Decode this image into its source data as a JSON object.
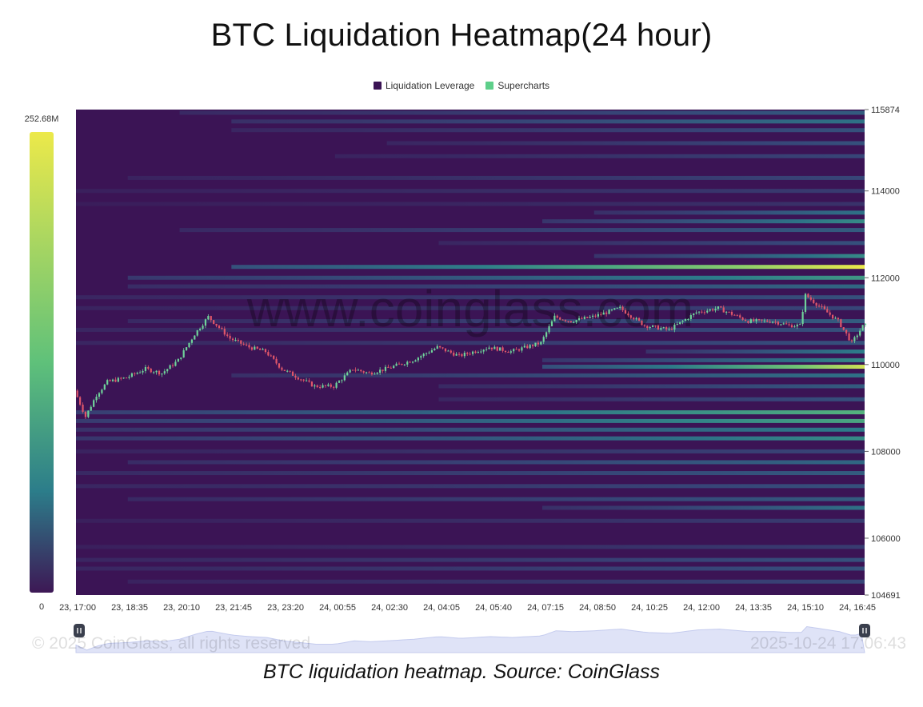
{
  "chart_data": {
    "type": "heatmap",
    "title": "BTC Liquidation Heatmap(24 hour)",
    "legend": [
      {
        "name": "Liquidation Leverage",
        "color": "#3b1455"
      },
      {
        "name": "Supercharts",
        "color": "#5ecf8a"
      }
    ],
    "legend_placement": "top-center",
    "colorbar": {
      "max_label": "252.68M",
      "min_label": "0",
      "max": 252.68,
      "min": 0,
      "unit": "M"
    },
    "y_axis": {
      "position": "right",
      "range": [
        104691,
        115874
      ],
      "tick_values": [
        104691,
        106000,
        108000,
        110000,
        112000,
        114000,
        115874
      ],
      "tick_labels": [
        "104691",
        "106000",
        "108000",
        "110000",
        "112000",
        "114000",
        "115874"
      ]
    },
    "x_axis": {
      "tick_labels": [
        "23, 17:00",
        "23, 18:35",
        "23, 20:10",
        "23, 21:45",
        "23, 23:20",
        "24, 00:55",
        "24, 02:30",
        "24, 04:05",
        "24, 05:40",
        "24, 07:15",
        "24, 08:50",
        "24, 10:25",
        "24, 12:00",
        "24, 13:35",
        "24, 15:10",
        "24, 16:45"
      ],
      "start": "2025-10-23 17:00",
      "end": "2025-10-24 17:06"
    },
    "liquidation_bands": [
      {
        "price": 115800,
        "start": "23, 20:10",
        "max_intensity": 0.35
      },
      {
        "price": 115600,
        "start": "23, 21:45",
        "max_intensity": 0.45
      },
      {
        "price": 115400,
        "start": "23, 21:45",
        "max_intensity": 0.3
      },
      {
        "price": 115100,
        "start": "24, 02:30",
        "max_intensity": 0.3
      },
      {
        "price": 114800,
        "start": "24, 00:55",
        "max_intensity": 0.25
      },
      {
        "price": 114300,
        "start": "23, 18:35",
        "max_intensity": 0.25
      },
      {
        "price": 114000,
        "start": "23, 17:00",
        "max_intensity": 0.2
      },
      {
        "price": 113700,
        "start": "23, 17:00",
        "max_intensity": 0.15
      },
      {
        "price": 113500,
        "start": "24, 08:50",
        "max_intensity": 0.45
      },
      {
        "price": 113300,
        "start": "24, 07:15",
        "max_intensity": 0.55
      },
      {
        "price": 113100,
        "start": "23, 20:10",
        "max_intensity": 0.35
      },
      {
        "price": 112800,
        "start": "24, 04:05",
        "max_intensity": 0.3
      },
      {
        "price": 112500,
        "start": "24, 08:50",
        "max_intensity": 0.55
      },
      {
        "price": 112250,
        "start": "23, 21:45",
        "max_intensity": 1.0
      },
      {
        "price": 112000,
        "start": "23, 18:35",
        "max_intensity": 0.6
      },
      {
        "price": 111800,
        "start": "23, 18:35",
        "max_intensity": 0.4
      },
      {
        "price": 111550,
        "start": "23, 17:00",
        "max_intensity": 0.3
      },
      {
        "price": 111300,
        "start": "23, 17:00",
        "max_intensity": 0.25
      },
      {
        "price": 111000,
        "start": "23, 18:35",
        "max_intensity": 0.35
      },
      {
        "price": 110800,
        "start": "23, 17:00",
        "max_intensity": 0.3
      },
      {
        "price": 110500,
        "start": "23, 17:00",
        "max_intensity": 0.3
      },
      {
        "price": 110300,
        "start": "24, 10:25",
        "max_intensity": 0.5
      },
      {
        "price": 110100,
        "start": "24, 07:15",
        "max_intensity": 0.55
      },
      {
        "price": 109950,
        "start": "24, 07:15",
        "max_intensity": 0.95
      },
      {
        "price": 109750,
        "start": "23, 21:45",
        "max_intensity": 0.45
      },
      {
        "price": 109500,
        "start": "24, 04:05",
        "max_intensity": 0.35
      },
      {
        "price": 109200,
        "start": "24, 04:05",
        "max_intensity": 0.3
      },
      {
        "price": 108900,
        "start": "23, 17:00",
        "max_intensity": 0.7
      },
      {
        "price": 108700,
        "start": "23, 17:00",
        "max_intensity": 0.65
      },
      {
        "price": 108500,
        "start": "23, 17:00",
        "max_intensity": 0.5
      },
      {
        "price": 108300,
        "start": "23, 17:00",
        "max_intensity": 0.55
      },
      {
        "price": 108000,
        "start": "23, 17:00",
        "max_intensity": 0.25
      },
      {
        "price": 107750,
        "start": "23, 18:35",
        "max_intensity": 0.4
      },
      {
        "price": 107500,
        "start": "23, 17:00",
        "max_intensity": 0.35
      },
      {
        "price": 107200,
        "start": "23, 17:00",
        "max_intensity": 0.3
      },
      {
        "price": 106900,
        "start": "23, 18:35",
        "max_intensity": 0.35
      },
      {
        "price": 106700,
        "start": "24, 07:15",
        "max_intensity": 0.45
      },
      {
        "price": 106400,
        "start": "23, 17:00",
        "max_intensity": 0.2
      },
      {
        "price": 105800,
        "start": "23, 17:00",
        "max_intensity": 0.2
      },
      {
        "price": 105500,
        "start": "23, 17:00",
        "max_intensity": 0.3
      },
      {
        "price": 105300,
        "start": "23, 17:00",
        "max_intensity": 0.3
      },
      {
        "price": 105000,
        "start": "23, 18:35",
        "max_intensity": 0.25
      }
    ],
    "price_path": [
      {
        "t": "23, 17:00",
        "price": 109400
      },
      {
        "t": "23, 17:20",
        "price": 108800
      },
      {
        "t": "23, 17:40",
        "price": 109300
      },
      {
        "t": "23, 18:00",
        "price": 109600
      },
      {
        "t": "23, 18:35",
        "price": 109700
      },
      {
        "t": "23, 19:10",
        "price": 109900
      },
      {
        "t": "23, 19:40",
        "price": 109800
      },
      {
        "t": "23, 20:10",
        "price": 110100
      },
      {
        "t": "23, 20:40",
        "price": 110700
      },
      {
        "t": "23, 21:05",
        "price": 111100
      },
      {
        "t": "23, 21:45",
        "price": 110600
      },
      {
        "t": "23, 22:20",
        "price": 110400
      },
      {
        "t": "23, 22:50",
        "price": 110300
      },
      {
        "t": "23, 23:20",
        "price": 109900
      },
      {
        "t": "23, 23:50",
        "price": 109700
      },
      {
        "t": "24, 00:20",
        "price": 109500
      },
      {
        "t": "24, 00:55",
        "price": 109500
      },
      {
        "t": "24, 01:30",
        "price": 109900
      },
      {
        "t": "24, 02:00",
        "price": 109800
      },
      {
        "t": "24, 02:30",
        "price": 109900
      },
      {
        "t": "24, 03:20",
        "price": 110100
      },
      {
        "t": "24, 04:05",
        "price": 110400
      },
      {
        "t": "24, 04:45",
        "price": 110200
      },
      {
        "t": "24, 05:40",
        "price": 110400
      },
      {
        "t": "24, 06:20",
        "price": 110300
      },
      {
        "t": "24, 07:15",
        "price": 110500
      },
      {
        "t": "24, 07:40",
        "price": 111100
      },
      {
        "t": "24, 08:10",
        "price": 111000
      },
      {
        "t": "24, 08:50",
        "price": 111100
      },
      {
        "t": "24, 09:40",
        "price": 111300
      },
      {
        "t": "24, 10:25",
        "price": 110900
      },
      {
        "t": "24, 11:10",
        "price": 110800
      },
      {
        "t": "24, 12:00",
        "price": 111200
      },
      {
        "t": "24, 12:40",
        "price": 111300
      },
      {
        "t": "24, 13:35",
        "price": 111000
      },
      {
        "t": "24, 14:20",
        "price": 111000
      },
      {
        "t": "24, 14:50",
        "price": 110900
      },
      {
        "t": "24, 15:10",
        "price": 110900
      },
      {
        "t": "24, 15:20",
        "price": 111600
      },
      {
        "t": "24, 15:50",
        "price": 111300
      },
      {
        "t": "24, 16:20",
        "price": 111000
      },
      {
        "t": "24, 16:45",
        "price": 110500
      },
      {
        "t": "24, 17:06",
        "price": 110900
      }
    ],
    "watermark": "www.coinglass.com",
    "footer_left": "© 2025 CoinGlass, all rights reserved",
    "footer_right": "2025-10-24 17:06:43"
  },
  "caption": "BTC liquidation heatmap. Source: CoinGlass",
  "colors": {
    "heatmap_background": "#3b1455",
    "colorbar_top": "#ece94a",
    "colorbar_mid": "#5fc17a",
    "colorbar_low": "#2c7d8a",
    "colorbar_bottom": "#3d1855",
    "candle_up": "#6fd39a",
    "candle_down": "#e0566a",
    "navigator_fill": "#dfe3f7"
  }
}
